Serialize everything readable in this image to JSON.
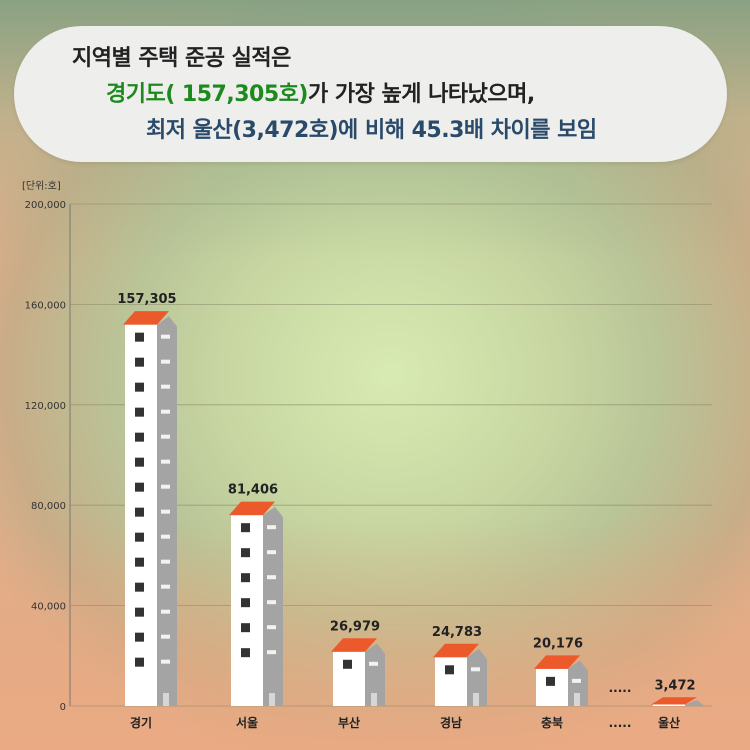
{
  "headline": {
    "line1": "지역별 주택 준공 실적은",
    "line2_highlight": "경기도( 157,305호)",
    "line2_rest": "가 가장 높게 나타났으며,",
    "line3": "최저 울산(3,472호)에 비해 45.3배 차이를 보임"
  },
  "chart_data": {
    "type": "bar",
    "title": "",
    "unit_label": "[단위:호]",
    "xlabel": "",
    "ylabel": "",
    "ylim": [
      0,
      200000
    ],
    "y_ticks": [
      "0",
      "40,000",
      "80,000",
      "120,000",
      "160,000",
      "200,000"
    ],
    "y_tick_values": [
      0,
      40000,
      80000,
      120000,
      160000,
      200000
    ],
    "grid": true,
    "categories": [
      "경기",
      "서울",
      "부산",
      "경남",
      "충북",
      "울산"
    ],
    "values": [
      157305,
      81406,
      26979,
      24783,
      20176,
      3472
    ],
    "value_labels": [
      "157,305",
      "81,406",
      "26,979",
      "24,783",
      "20,176",
      "3,472"
    ],
    "ellipsis": "....."
  },
  "colors": {
    "roof": "#ec5a2c",
    "wall_front": "#ffffff",
    "wall_side": "#a4a4a4",
    "window_front": "#333333",
    "window_side": "#f2f2f2"
  }
}
